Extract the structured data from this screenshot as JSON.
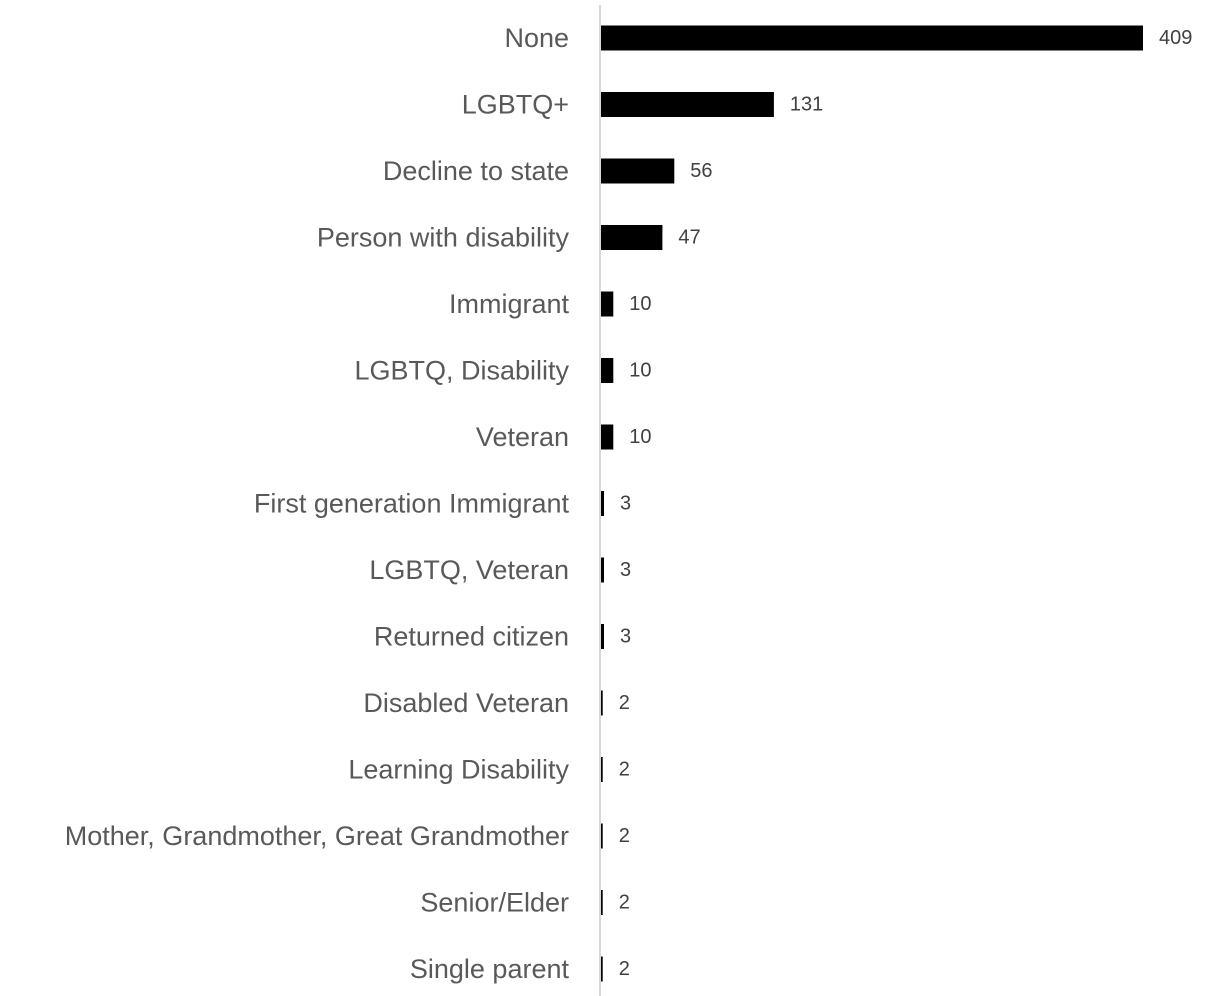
{
  "chart_data": {
    "type": "bar",
    "orientation": "horizontal",
    "categories": [
      "None",
      "LGBTQ+",
      "Decline to state",
      "Person with disability",
      "Immigrant",
      "LGBTQ, Disability",
      "Veteran",
      "First generation Immigrant",
      "LGBTQ, Veteran",
      "Returned citizen",
      "Disabled Veteran",
      "Learning Disability",
      "Mother, Grandmother, Great Grandmother",
      "Senior/Elder",
      "Single parent"
    ],
    "values": [
      409,
      131,
      56,
      47,
      10,
      10,
      10,
      3,
      3,
      3,
      2,
      2,
      2,
      2,
      2
    ],
    "data_labels": [
      "409",
      "131",
      "56",
      "47",
      "10",
      "10",
      "10",
      "3",
      "3",
      "3",
      "2",
      "2",
      "2",
      "2",
      "2"
    ],
    "title": "",
    "xlabel": "",
    "ylabel": "",
    "xlim": [
      0,
      409
    ],
    "grid": false,
    "legend": "none",
    "bar_color": "#000000",
    "axis_color": "#d9d9d9"
  }
}
